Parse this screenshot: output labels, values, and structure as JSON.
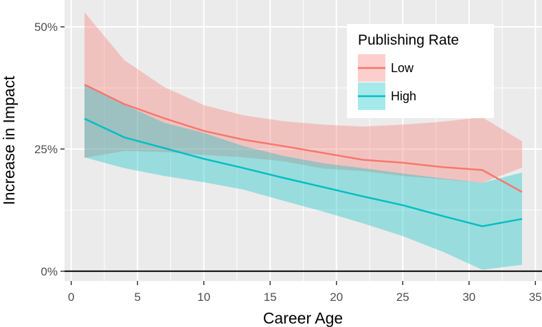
{
  "chart_data": {
    "type": "line",
    "xlabel": "Career Age",
    "ylabel": "Increase in Impact",
    "xlim": [
      -0.5,
      35.5
    ],
    "ylim": [
      -0.02,
      0.555
    ],
    "xticks": [
      0,
      5,
      10,
      15,
      20,
      25,
      30,
      35
    ],
    "xtick_labels": [
      "0",
      "5",
      "10",
      "15",
      "20",
      "25",
      "30",
      "35"
    ],
    "yticks": [
      0,
      0.25,
      0.5
    ],
    "ytick_labels": [
      "0%",
      "25%",
      "50%"
    ],
    "hline": 0,
    "grid": true,
    "legend": {
      "title": "Publishing Rate",
      "position": "top-right"
    },
    "colors": {
      "panel": "#ebebeb",
      "grid": "#ffffff",
      "baseline": "#000000"
    },
    "series": [
      {
        "name": "Low",
        "color": "#f8766d",
        "fill": "rgba(248,118,109,0.35)",
        "x": [
          1,
          4,
          7,
          10,
          13,
          16,
          19,
          22,
          25,
          28,
          31,
          34
        ],
        "y": [
          0.382,
          0.342,
          0.313,
          0.287,
          0.269,
          0.256,
          0.242,
          0.228,
          0.222,
          0.213,
          0.207,
          0.162
        ],
        "lower": [
          0.232,
          0.246,
          0.244,
          0.238,
          0.233,
          0.225,
          0.21,
          0.205,
          0.195,
          0.188,
          0.181,
          0.212
        ],
        "upper": [
          0.53,
          0.432,
          0.377,
          0.34,
          0.319,
          0.307,
          0.3,
          0.296,
          0.3,
          0.306,
          0.315,
          0.266
        ]
      },
      {
        "name": "High",
        "color": "#00bfc4",
        "fill": "rgba(0,191,196,0.35)",
        "x": [
          1,
          4,
          7,
          10,
          13,
          16,
          19,
          22,
          25,
          28,
          31,
          34
        ],
        "y": [
          0.312,
          0.274,
          0.252,
          0.23,
          0.211,
          0.191,
          0.172,
          0.153,
          0.135,
          0.113,
          0.092,
          0.107
        ],
        "lower": [
          0.233,
          0.211,
          0.195,
          0.182,
          0.167,
          0.144,
          0.122,
          0.098,
          0.072,
          0.04,
          0.003,
          0.013
        ],
        "upper": [
          0.38,
          0.341,
          0.304,
          0.283,
          0.256,
          0.236,
          0.221,
          0.211,
          0.2,
          0.19,
          0.181,
          0.202
        ]
      }
    ]
  }
}
